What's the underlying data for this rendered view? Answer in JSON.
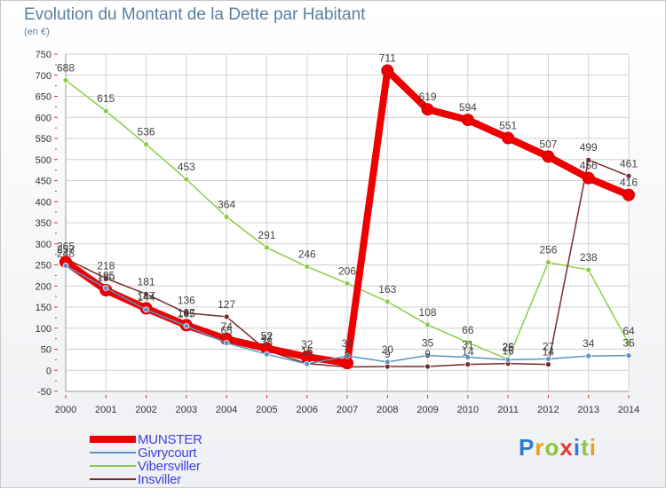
{
  "title": "Evolution du Montant de la Dette par Habitant",
  "subtitle": "(en €)",
  "logo": {
    "text": "Proxiti",
    "colors": [
      "#2e7bd6",
      "#e8a21a",
      "#8ac43f",
      "#e03a2e",
      "#2e7bd6",
      "#8ac43f",
      "#e8a21a"
    ]
  },
  "chart_data": {
    "type": "line",
    "x": [
      "2000",
      "2001",
      "2002",
      "2003",
      "2004",
      "2005",
      "2006",
      "2007",
      "2008",
      "2009",
      "2010",
      "2011",
      "2012",
      "2013",
      "2014"
    ],
    "ylim": [
      -50,
      750
    ],
    "yticks": [
      -50,
      0,
      50,
      100,
      150,
      200,
      250,
      300,
      350,
      400,
      450,
      500,
      550,
      600,
      650,
      700,
      750
    ],
    "grid": true,
    "legend_position": "bottom-left",
    "series": [
      {
        "name": "MUNSTER",
        "color": "#ee0000",
        "width": 8,
        "values": [
          257,
          190,
          147,
          107,
          74,
          52,
          32,
          17,
          711,
          619,
          594,
          551,
          507,
          456,
          416
        ],
        "labels": [
          "257",
          "190",
          "147",
          "107",
          "74",
          "52",
          "32",
          "",
          "711",
          "619",
          "594",
          "551",
          "507",
          "456",
          "416"
        ]
      },
      {
        "name": "Givrycourt",
        "color": "#5b93c8",
        "width": 1.5,
        "values": [
          248,
          195,
          144,
          105,
          65,
          38,
          15,
          34,
          20,
          35,
          31,
          25,
          27,
          34,
          35
        ],
        "labels": [
          "248",
          "195",
          "144",
          "105",
          "65",
          "38",
          "15",
          "34",
          "20",
          "35",
          "31",
          "25",
          "27",
          "34",
          "35"
        ]
      },
      {
        "name": "Vibersviller",
        "color": "#8ccc48",
        "width": 1.5,
        "values": [
          688,
          615,
          536,
          453,
          364,
          291,
          246,
          206,
          163,
          108,
          66,
          26,
          256,
          238,
          64
        ],
        "labels": [
          "688",
          "615",
          "536",
          "453",
          "364",
          "291",
          "246",
          "206",
          "163",
          "108",
          "66",
          "26",
          "256",
          "238",
          "64"
        ]
      },
      {
        "name": "Insviller",
        "color": "#7a2a2a",
        "width": 1.5,
        "values": [
          265,
          218,
          181,
          136,
          127,
          47,
          16,
          8,
          9,
          9,
          14,
          16,
          14,
          499,
          461
        ],
        "labels": [
          "265",
          "218",
          "181",
          "136",
          "127",
          "47",
          "16",
          "8",
          "9",
          "9",
          "14",
          "16",
          "14",
          "499",
          "461"
        ]
      }
    ]
  }
}
